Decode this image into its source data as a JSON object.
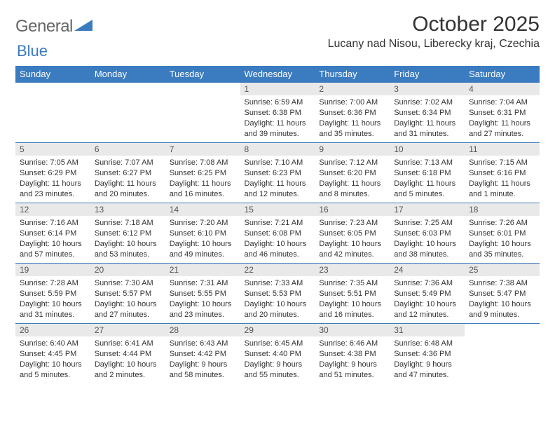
{
  "logo": {
    "text_gray": "General",
    "text_blue": "Blue"
  },
  "header": {
    "title": "October 2025",
    "location": "Lucany nad Nisou, Liberecky kraj, Czechia"
  },
  "colors": {
    "header_bg": "#3b7bbf",
    "header_text": "#ffffff",
    "daynum_bg": "#e9e9e9",
    "border": "#3b7bbf",
    "text": "#333333"
  },
  "weekdays": [
    "Sunday",
    "Monday",
    "Tuesday",
    "Wednesday",
    "Thursday",
    "Friday",
    "Saturday"
  ],
  "weeks": [
    [
      {
        "n": "",
        "sr": "",
        "ss": "",
        "dl": ""
      },
      {
        "n": "",
        "sr": "",
        "ss": "",
        "dl": ""
      },
      {
        "n": "",
        "sr": "",
        "ss": "",
        "dl": ""
      },
      {
        "n": "1",
        "sr": "Sunrise: 6:59 AM",
        "ss": "Sunset: 6:38 PM",
        "dl": "Daylight: 11 hours and 39 minutes."
      },
      {
        "n": "2",
        "sr": "Sunrise: 7:00 AM",
        "ss": "Sunset: 6:36 PM",
        "dl": "Daylight: 11 hours and 35 minutes."
      },
      {
        "n": "3",
        "sr": "Sunrise: 7:02 AM",
        "ss": "Sunset: 6:34 PM",
        "dl": "Daylight: 11 hours and 31 minutes."
      },
      {
        "n": "4",
        "sr": "Sunrise: 7:04 AM",
        "ss": "Sunset: 6:31 PM",
        "dl": "Daylight: 11 hours and 27 minutes."
      }
    ],
    [
      {
        "n": "5",
        "sr": "Sunrise: 7:05 AM",
        "ss": "Sunset: 6:29 PM",
        "dl": "Daylight: 11 hours and 23 minutes."
      },
      {
        "n": "6",
        "sr": "Sunrise: 7:07 AM",
        "ss": "Sunset: 6:27 PM",
        "dl": "Daylight: 11 hours and 20 minutes."
      },
      {
        "n": "7",
        "sr": "Sunrise: 7:08 AM",
        "ss": "Sunset: 6:25 PM",
        "dl": "Daylight: 11 hours and 16 minutes."
      },
      {
        "n": "8",
        "sr": "Sunrise: 7:10 AM",
        "ss": "Sunset: 6:23 PM",
        "dl": "Daylight: 11 hours and 12 minutes."
      },
      {
        "n": "9",
        "sr": "Sunrise: 7:12 AM",
        "ss": "Sunset: 6:20 PM",
        "dl": "Daylight: 11 hours and 8 minutes."
      },
      {
        "n": "10",
        "sr": "Sunrise: 7:13 AM",
        "ss": "Sunset: 6:18 PM",
        "dl": "Daylight: 11 hours and 5 minutes."
      },
      {
        "n": "11",
        "sr": "Sunrise: 7:15 AM",
        "ss": "Sunset: 6:16 PM",
        "dl": "Daylight: 11 hours and 1 minute."
      }
    ],
    [
      {
        "n": "12",
        "sr": "Sunrise: 7:16 AM",
        "ss": "Sunset: 6:14 PM",
        "dl": "Daylight: 10 hours and 57 minutes."
      },
      {
        "n": "13",
        "sr": "Sunrise: 7:18 AM",
        "ss": "Sunset: 6:12 PM",
        "dl": "Daylight: 10 hours and 53 minutes."
      },
      {
        "n": "14",
        "sr": "Sunrise: 7:20 AM",
        "ss": "Sunset: 6:10 PM",
        "dl": "Daylight: 10 hours and 49 minutes."
      },
      {
        "n": "15",
        "sr": "Sunrise: 7:21 AM",
        "ss": "Sunset: 6:08 PM",
        "dl": "Daylight: 10 hours and 46 minutes."
      },
      {
        "n": "16",
        "sr": "Sunrise: 7:23 AM",
        "ss": "Sunset: 6:05 PM",
        "dl": "Daylight: 10 hours and 42 minutes."
      },
      {
        "n": "17",
        "sr": "Sunrise: 7:25 AM",
        "ss": "Sunset: 6:03 PM",
        "dl": "Daylight: 10 hours and 38 minutes."
      },
      {
        "n": "18",
        "sr": "Sunrise: 7:26 AM",
        "ss": "Sunset: 6:01 PM",
        "dl": "Daylight: 10 hours and 35 minutes."
      }
    ],
    [
      {
        "n": "19",
        "sr": "Sunrise: 7:28 AM",
        "ss": "Sunset: 5:59 PM",
        "dl": "Daylight: 10 hours and 31 minutes."
      },
      {
        "n": "20",
        "sr": "Sunrise: 7:30 AM",
        "ss": "Sunset: 5:57 PM",
        "dl": "Daylight: 10 hours and 27 minutes."
      },
      {
        "n": "21",
        "sr": "Sunrise: 7:31 AM",
        "ss": "Sunset: 5:55 PM",
        "dl": "Daylight: 10 hours and 23 minutes."
      },
      {
        "n": "22",
        "sr": "Sunrise: 7:33 AM",
        "ss": "Sunset: 5:53 PM",
        "dl": "Daylight: 10 hours and 20 minutes."
      },
      {
        "n": "23",
        "sr": "Sunrise: 7:35 AM",
        "ss": "Sunset: 5:51 PM",
        "dl": "Daylight: 10 hours and 16 minutes."
      },
      {
        "n": "24",
        "sr": "Sunrise: 7:36 AM",
        "ss": "Sunset: 5:49 PM",
        "dl": "Daylight: 10 hours and 12 minutes."
      },
      {
        "n": "25",
        "sr": "Sunrise: 7:38 AM",
        "ss": "Sunset: 5:47 PM",
        "dl": "Daylight: 10 hours and 9 minutes."
      }
    ],
    [
      {
        "n": "26",
        "sr": "Sunrise: 6:40 AM",
        "ss": "Sunset: 4:45 PM",
        "dl": "Daylight: 10 hours and 5 minutes."
      },
      {
        "n": "27",
        "sr": "Sunrise: 6:41 AM",
        "ss": "Sunset: 4:44 PM",
        "dl": "Daylight: 10 hours and 2 minutes."
      },
      {
        "n": "28",
        "sr": "Sunrise: 6:43 AM",
        "ss": "Sunset: 4:42 PM",
        "dl": "Daylight: 9 hours and 58 minutes."
      },
      {
        "n": "29",
        "sr": "Sunrise: 6:45 AM",
        "ss": "Sunset: 4:40 PM",
        "dl": "Daylight: 9 hours and 55 minutes."
      },
      {
        "n": "30",
        "sr": "Sunrise: 6:46 AM",
        "ss": "Sunset: 4:38 PM",
        "dl": "Daylight: 9 hours and 51 minutes."
      },
      {
        "n": "31",
        "sr": "Sunrise: 6:48 AM",
        "ss": "Sunset: 4:36 PM",
        "dl": "Daylight: 9 hours and 47 minutes."
      },
      {
        "n": "",
        "sr": "",
        "ss": "",
        "dl": ""
      }
    ]
  ]
}
